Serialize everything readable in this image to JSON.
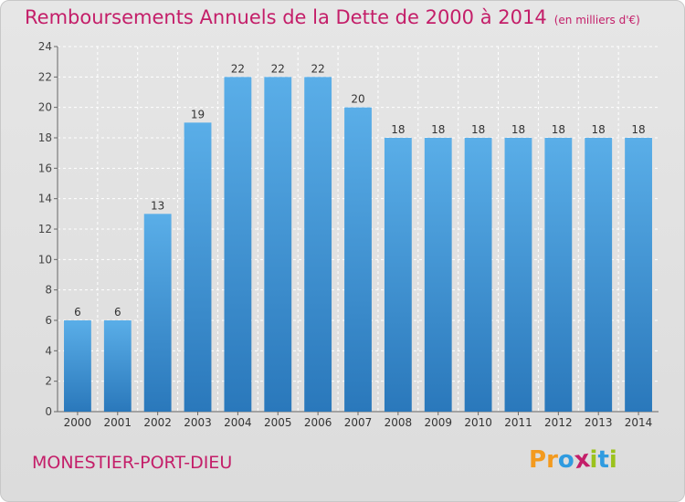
{
  "chart_data": {
    "type": "bar",
    "title": "Remboursements Annuels de la Dette de 2000 à 2014",
    "subtitle": "(en milliers d'€)",
    "categories": [
      "2000",
      "2001",
      "2002",
      "2003",
      "2004",
      "2005",
      "2006",
      "2007",
      "2008",
      "2009",
      "2010",
      "2011",
      "2012",
      "2013",
      "2014"
    ],
    "values": [
      6,
      6,
      13,
      19,
      22,
      22,
      22,
      20,
      18,
      18,
      18,
      18,
      18,
      18,
      18
    ],
    "ylim": [
      0,
      24
    ],
    "yticks": [
      0,
      2,
      4,
      6,
      8,
      10,
      12,
      14,
      16,
      18,
      20,
      22,
      24
    ],
    "grid": true,
    "bar_color_top": "#5aaee8",
    "bar_color_bottom": "#2a78bb",
    "xlabel": "",
    "ylabel": ""
  },
  "footer": {
    "commune": "MONESTIER-PORT-DIEU",
    "logo_letters": [
      "P",
      "r",
      "o",
      "x",
      "i",
      "t",
      "i"
    ],
    "logo_colors": [
      "#f39a1e",
      "#f39a1e",
      "#2f9be0",
      "#c41e69",
      "#9bc21c",
      "#2f9be0",
      "#9bc21c"
    ]
  },
  "colors": {
    "title": "#c41e69"
  }
}
